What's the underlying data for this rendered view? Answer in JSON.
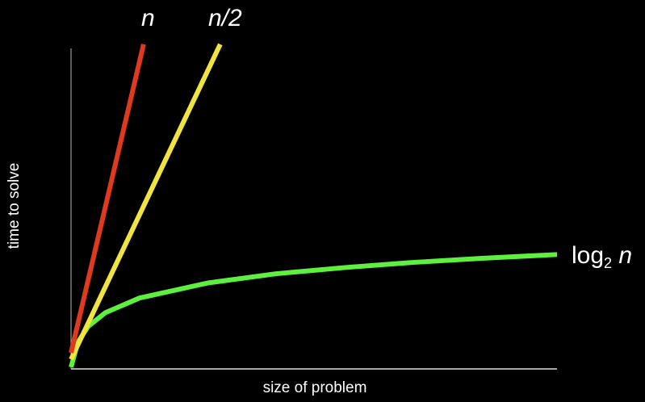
{
  "chart_data": {
    "type": "line",
    "title": "",
    "xlabel": "size of problem",
    "ylabel": "time to solve",
    "xlim": [
      0,
      142
    ],
    "ylim": [
      0,
      95
    ],
    "grid": false,
    "axis_color": "#cccccc",
    "series": [
      {
        "name": "n",
        "color": "#dd3a1e",
        "points": [
          [
            0,
            4.7
          ],
          [
            21.2,
            94.8
          ]
        ]
      },
      {
        "name": "n/2",
        "color": "#f2e440",
        "points": [
          [
            0,
            2.8
          ],
          [
            43.6,
            94.8
          ]
        ]
      },
      {
        "name_base": "log",
        "name_sub": "2",
        "name_var": "n",
        "color": "#5ef03e",
        "points": [
          [
            0,
            0.5
          ],
          [
            2,
            7.8
          ],
          [
            5,
            12.4
          ],
          [
            10,
            16.4
          ],
          [
            20,
            20.7
          ],
          [
            40,
            25.1
          ],
          [
            60,
            27.8
          ],
          [
            80,
            29.6
          ],
          [
            100,
            31.1
          ],
          [
            120,
            32.3
          ],
          [
            142,
            33.4
          ]
        ]
      }
    ]
  }
}
